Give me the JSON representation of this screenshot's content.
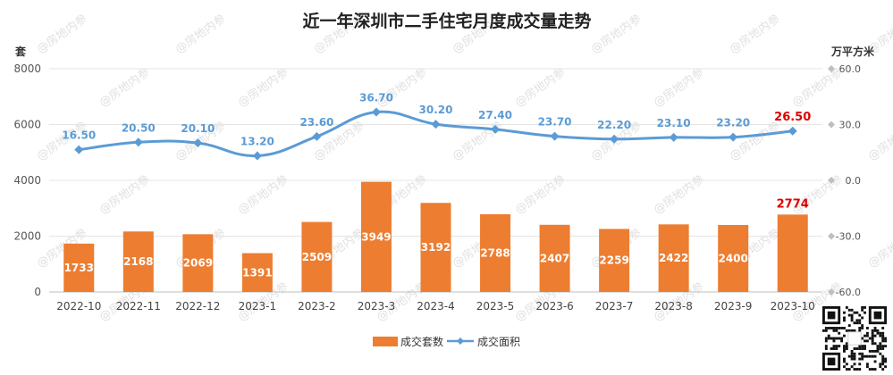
{
  "chart_data": {
    "type": "bar",
    "title": "近一年深圳市二手住宅月度成交量走势",
    "left_axis_unit": "套",
    "right_axis_unit": "万平方米",
    "left_ylim": [
      0,
      8000
    ],
    "left_ticks": [
      "0",
      "2000",
      "4000",
      "6000",
      "8000"
    ],
    "right_ylim": [
      -60,
      60
    ],
    "right_ticks": [
      "-60.0",
      "-30.0",
      "0.0",
      "30.0",
      "60.0"
    ],
    "grid": true,
    "legend_position": "bottom",
    "categories": [
      "2022-10",
      "2022-11",
      "2022-12",
      "2023-1",
      "2023-2",
      "2023-3",
      "2023-4",
      "2023-5",
      "2023-6",
      "2023-7",
      "2023-8",
      "2023-9",
      "2023-10"
    ],
    "series": [
      {
        "name": "成交套数",
        "type": "bar",
        "axis": "left",
        "color": "#ED7D31",
        "values": [
          1733,
          2168,
          2069,
          1391,
          2509,
          3949,
          3192,
          2788,
          2407,
          2259,
          2422,
          2400,
          2774
        ],
        "labels": [
          "1733",
          "2168",
          "2069",
          "1391",
          "2509",
          "3949",
          "3192",
          "2788",
          "2407",
          "2259",
          "2422",
          "2400",
          "2774"
        ]
      },
      {
        "name": "成交面积",
        "type": "line",
        "axis": "right",
        "color": "#5B9BD5",
        "values": [
          16.5,
          20.5,
          20.1,
          13.2,
          23.6,
          36.7,
          30.2,
          27.4,
          23.7,
          22.2,
          23.1,
          23.2,
          26.5
        ],
        "labels": [
          "16.50",
          "20.50",
          "20.10",
          "13.20",
          "23.60",
          "36.70",
          "30.20",
          "27.40",
          "23.70",
          "22.20",
          "23.10",
          "23.20",
          "26.50"
        ]
      }
    ],
    "highlight_color": "#E00000",
    "watermark_text": "@房地内参"
  }
}
